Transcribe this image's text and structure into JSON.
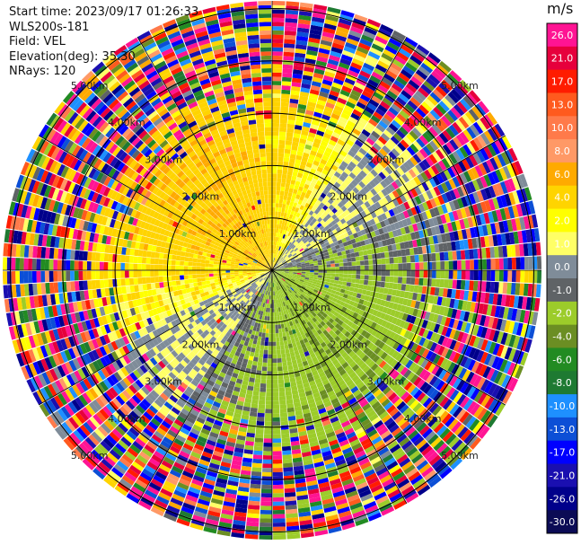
{
  "header": {
    "start_time": "Start time: 2023/09/17 01:26:33",
    "instrument": "WLS200s-181",
    "field": "Field: VEL",
    "elevation": "Elevation(deg): 35.30",
    "nrays": "NRays: 120"
  },
  "colorbar": {
    "unit": "m/s",
    "labels": [
      "26.0",
      "21.0",
      "17.0",
      "13.0",
      "10.0",
      "8.0",
      "6.0",
      "4.0",
      "2.0",
      "1.0",
      "0.0",
      "-1.0",
      "-2.0",
      "-4.0",
      "-6.0",
      "-8.0",
      "-10.0",
      "-13.0",
      "-17.0",
      "-21.0",
      "-26.0",
      "-30.0"
    ],
    "colors": [
      "#ff1493",
      "#e6003c",
      "#ff1c00",
      "#ff5a1e",
      "#ff7a4a",
      "#ff9966",
      "#ffaa00",
      "#ffd400",
      "#ffff00",
      "#ffff66",
      "#7f8c99",
      "#5f6366",
      "#9ccc2a",
      "#6b8e23",
      "#228b22",
      "#1e7a32",
      "#1e90ff",
      "#0c4fd6",
      "#0000ff",
      "#1a0fb0",
      "#00008b",
      "#0b0b55"
    ]
  },
  "range_rings": {
    "labels": [
      "1.00km",
      "2.00km",
      "3.00km",
      "4.00km",
      "5.00km"
    ]
  },
  "chart_data": {
    "type": "heatmap",
    "title": "",
    "field": "VEL",
    "unit": "m/s",
    "nrays": 120,
    "elevation_deg": 35.3,
    "range_rings_km": [
      1,
      2,
      3,
      4,
      5
    ],
    "color_levels": [
      26.0,
      21.0,
      17.0,
      13.0,
      10.0,
      8.0,
      6.0,
      4.0,
      2.0,
      1.0,
      0.0,
      -1.0,
      -2.0,
      -4.0,
      -6.0,
      -8.0,
      -10.0,
      -13.0,
      -17.0,
      -21.0,
      -26.0,
      -30.0
    ],
    "pattern": "Positive (yellow, ~2-4 m/s) velocities in the north-west half, negative (green, ~-2 to -6 m/s) in the south-east half, gray near-zero band along the NE-SW axis; noisy multicolor returns beyond ~3 km range"
  }
}
